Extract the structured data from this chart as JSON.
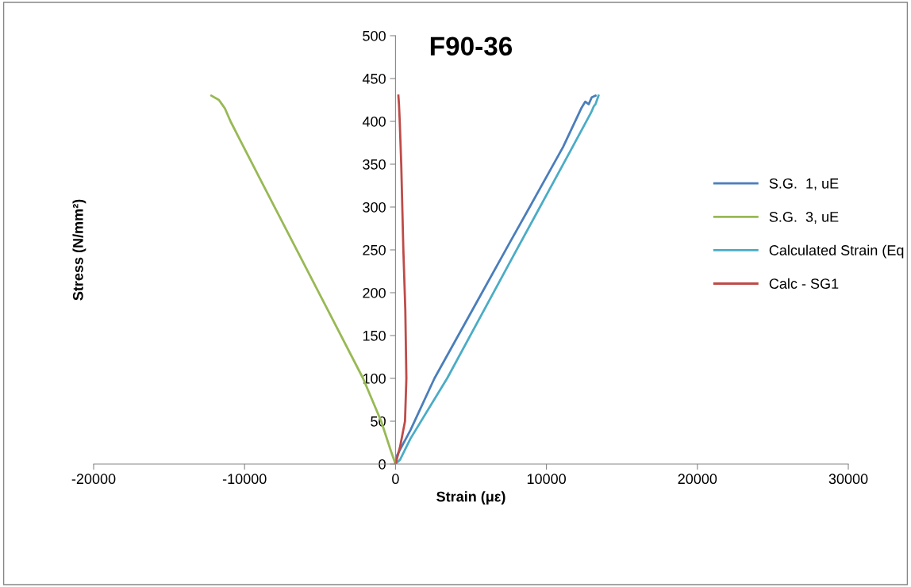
{
  "chart_data": {
    "type": "line",
    "title": "F90-36",
    "xlabel": "Strain (με)",
    "ylabel": "Stress (N/mm²)",
    "xlim": [
      -20000,
      30000
    ],
    "xticks": [
      -20000,
      -10000,
      0,
      10000,
      20000,
      30000
    ],
    "ylim": [
      0,
      500
    ],
    "yticks": [
      0,
      50,
      100,
      150,
      200,
      250,
      300,
      350,
      400,
      450,
      500
    ],
    "grid": false,
    "legend": "right",
    "marker": "none",
    "line_style": "solid",
    "series": [
      {
        "name": "S.G.  1, uE",
        "color": "#4a7ebb",
        "x": [
          0,
          100,
          1000,
          2580,
          5350,
          7620,
          8890,
          11100,
          12300,
          12570,
          12800,
          13000,
          13250
        ],
        "values": [
          0,
          10,
          40,
          100,
          188,
          260,
          300,
          370,
          415,
          423,
          420,
          428,
          430
        ]
      },
      {
        "name": "S.G.  3, uE",
        "color": "#98b954",
        "x": [
          0,
          -300,
          -950,
          -2150,
          -4490,
          -6840,
          -8890,
          -10350,
          -10930,
          -11300,
          -11500,
          -11700,
          -12200
        ],
        "values": [
          0,
          15,
          50,
          100,
          180,
          260,
          330,
          380,
          400,
          415,
          420,
          425,
          430
        ]
      },
      {
        "name": "Calculated Strain (Eq",
        "color": "#4bacc6",
        "x": [
          0,
          300,
          1000,
          3420,
          6030,
          7870,
          9570,
          11570,
          12950,
          13150,
          13250,
          13450
        ],
        "values": [
          0,
          5,
          30,
          100,
          185,
          245,
          300,
          365,
          410,
          418,
          420,
          430
        ]
      },
      {
        "name": "Calc - SG1",
        "color": "#be4b48",
        "x": [
          0,
          300,
          630,
          720,
          650,
          520,
          450,
          380,
          280,
          230,
          190
        ],
        "values": [
          0,
          20,
          50,
          100,
          180,
          250,
          300,
          350,
          400,
          420,
          430
        ]
      }
    ]
  }
}
